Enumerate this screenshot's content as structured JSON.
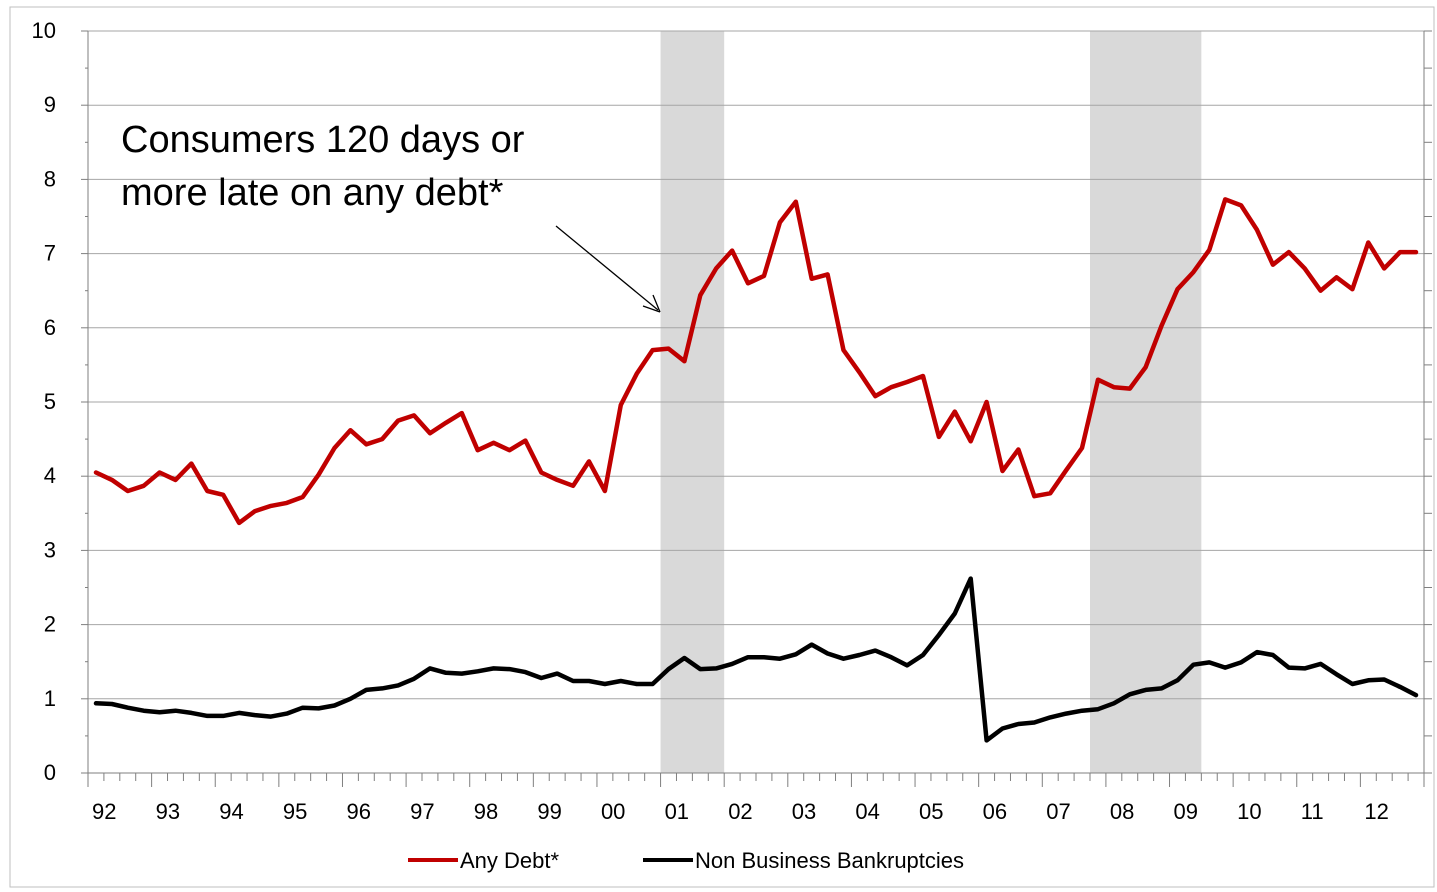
{
  "chart_data": {
    "type": "line",
    "title": "",
    "xlabel": "",
    "ylabel": "",
    "ylim": [
      0,
      10
    ],
    "yticks": [
      "0",
      "1",
      "2",
      "3",
      "4",
      "5",
      "6",
      "7",
      "8",
      "9",
      "10"
    ],
    "xticks": [
      "92",
      "93",
      "94",
      "95",
      "96",
      "97",
      "98",
      "99",
      "00",
      "01",
      "02",
      "03",
      "04",
      "05",
      "06",
      "07",
      "08",
      "09",
      "10",
      "11",
      "12"
    ],
    "x_start": "1992 Q1",
    "x_frequency": "quarterly",
    "grid": "horizontal",
    "legend_position": "bottom",
    "recessions": [
      {
        "start": "2001 Q1",
        "end": "2001 Q4"
      },
      {
        "start": "2007 Q4",
        "end": "2009 Q2"
      }
    ],
    "annotation": {
      "lines": [
        "Consumers 120 days or",
        "more late on any debt*"
      ],
      "points_to": "Any Debt*"
    },
    "colors": {
      "any_debt": "#c00000",
      "bankruptcies": "#000000",
      "recession": "#d9d9d9",
      "grid": "#a6a6a6"
    },
    "series": [
      {
        "name": "Any Debt*",
        "values": [
          4.05,
          3.95,
          3.8,
          3.87,
          4.05,
          3.95,
          4.17,
          3.8,
          3.75,
          3.37,
          3.53,
          3.6,
          3.64,
          3.72,
          4.02,
          4.38,
          4.62,
          4.43,
          4.5,
          4.75,
          4.82,
          4.58,
          4.72,
          4.85,
          4.35,
          4.45,
          4.35,
          4.48,
          4.05,
          3.95,
          3.87,
          4.2,
          3.8,
          4.96,
          5.38,
          5.7,
          5.72,
          5.55,
          6.44,
          6.8,
          7.04,
          6.6,
          6.7,
          7.42,
          7.7,
          6.66,
          6.72,
          5.7,
          5.4,
          5.08,
          5.2,
          5.27,
          5.35,
          4.53,
          4.87,
          4.47,
          5.0,
          4.07,
          4.36,
          3.73,
          3.77,
          4.08,
          4.38,
          5.3,
          5.2,
          5.18,
          5.47,
          6.03,
          6.52,
          6.75,
          7.05,
          7.73,
          7.65,
          7.32,
          6.85,
          7.02,
          6.8,
          6.5,
          6.68,
          6.52,
          7.15,
          6.8,
          7.02,
          7.02
        ]
      },
      {
        "name": "Non Business Bankruptcies",
        "values": [
          0.94,
          0.93,
          0.88,
          0.84,
          0.82,
          0.84,
          0.81,
          0.77,
          0.77,
          0.81,
          0.78,
          0.76,
          0.8,
          0.88,
          0.87,
          0.91,
          1.0,
          1.12,
          1.14,
          1.18,
          1.27,
          1.41,
          1.35,
          1.34,
          1.37,
          1.41,
          1.4,
          1.36,
          1.28,
          1.34,
          1.24,
          1.24,
          1.2,
          1.24,
          1.2,
          1.2,
          1.4,
          1.55,
          1.4,
          1.41,
          1.47,
          1.56,
          1.56,
          1.54,
          1.6,
          1.73,
          1.61,
          1.54,
          1.59,
          1.65,
          1.56,
          1.45,
          1.59,
          1.86,
          2.15,
          2.62,
          0.44,
          0.6,
          0.66,
          0.68,
          0.75,
          0.8,
          0.84,
          0.86,
          0.94,
          1.06,
          1.12,
          1.14,
          1.25,
          1.46,
          1.49,
          1.42,
          1.49,
          1.63,
          1.59,
          1.42,
          1.41,
          1.47,
          1.33,
          1.2,
          1.25,
          1.26,
          1.16,
          1.05
        ]
      }
    ]
  }
}
